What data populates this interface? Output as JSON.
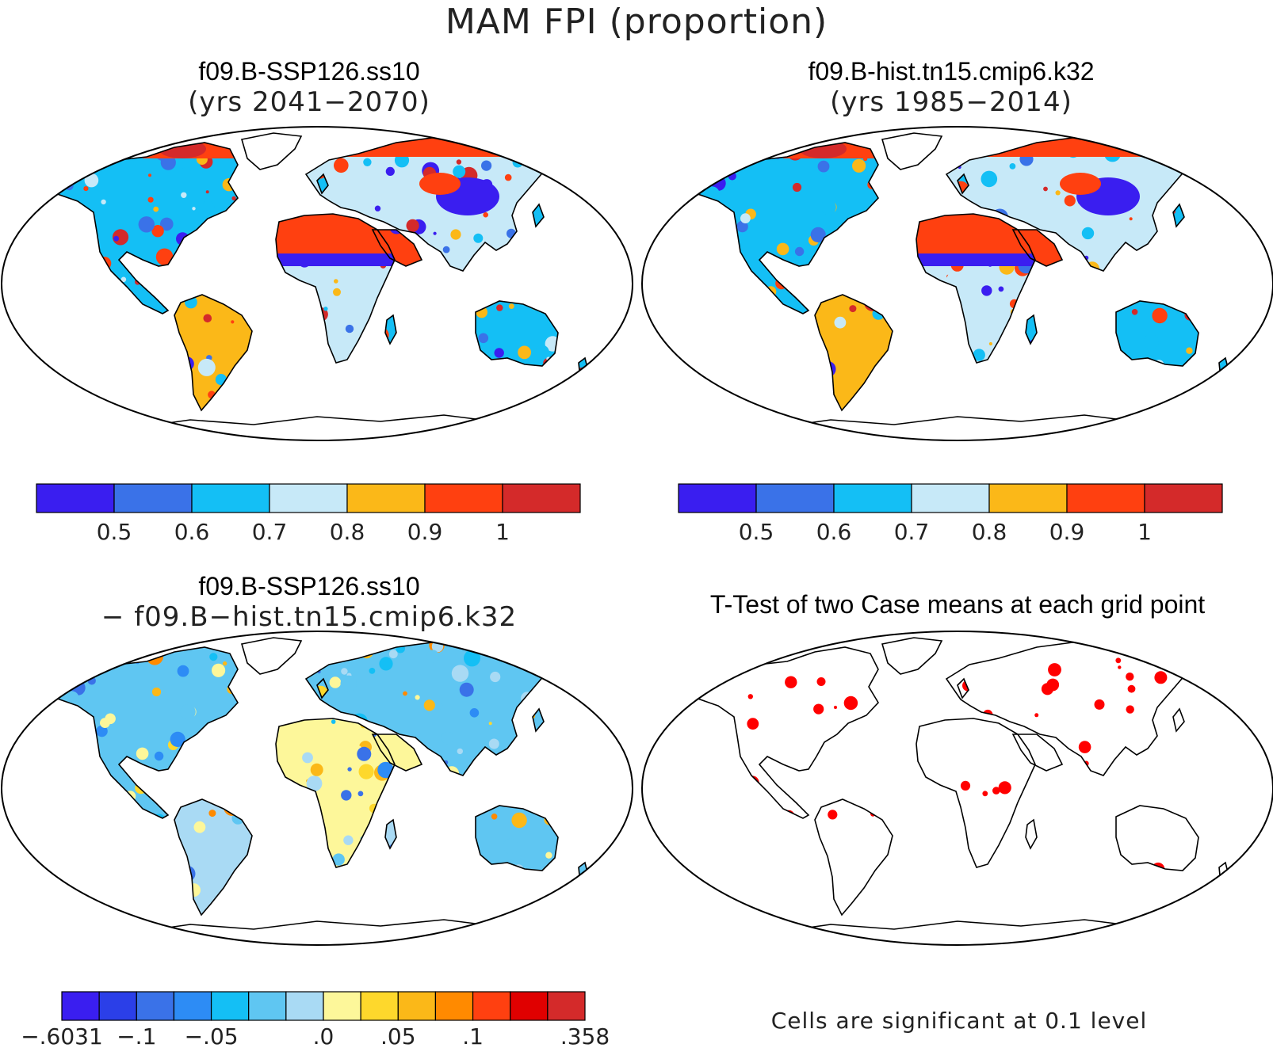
{
  "title": "MAM FPI (proportion)",
  "panels": [
    {
      "id": "future",
      "title_line1": "f09.B-SSP126.ss10",
      "title_line2": "(yrs 2041−2070)",
      "colorbar": {
        "colors": [
          "#3a1ef0",
          "#3a72e8",
          "#14bff5",
          "#c7e9f8",
          "#fbb818",
          "#ff4010",
          "#d42a2a"
        ],
        "tick_labels": [
          "0.5",
          "0.6",
          "0.7",
          "0.8",
          "0.9",
          "1"
        ]
      }
    },
    {
      "id": "historical",
      "title_line1": "f09.B-hist.tn15.cmip6.k32",
      "title_line2": "(yrs 1985−2014)",
      "colorbar": {
        "colors": [
          "#3a1ef0",
          "#3a72e8",
          "#14bff5",
          "#c7e9f8",
          "#fbb818",
          "#ff4010",
          "#d42a2a"
        ],
        "tick_labels": [
          "0.5",
          "0.6",
          "0.7",
          "0.8",
          "0.9",
          "1"
        ]
      }
    },
    {
      "id": "difference",
      "title_line1": "f09.B-SSP126.ss10",
      "title_line2": "− f09.B−hist.tn15.cmip6.k32",
      "colorbar": {
        "colors": [
          "#3a1ef0",
          "#2b3fe8",
          "#3a72e8",
          "#2d8cf5",
          "#14bff5",
          "#5fc6f2",
          "#a9daf4",
          "#fdf79a",
          "#fed82c",
          "#fbb818",
          "#ff8a00",
          "#ff4010",
          "#e00000",
          "#d42a2a"
        ],
        "tick_labels": [
          "−.6031",
          "−.1",
          "−.05",
          ".0",
          ".05",
          ".1",
          ".358"
        ]
      }
    },
    {
      "id": "ttest",
      "title_line1": "T-Test of two Case means at each grid point",
      "note": "Cells are significant at 0.1 level",
      "significant_color": "#ff0000"
    }
  ],
  "map_colors": {
    "ocean": "#ffffff",
    "outline": "#000000"
  }
}
